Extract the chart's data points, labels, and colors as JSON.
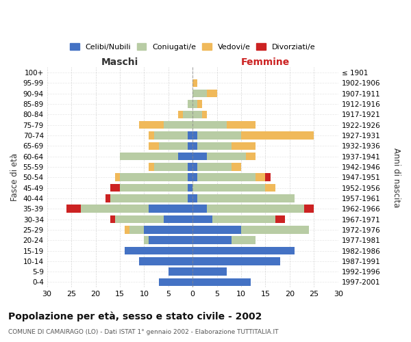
{
  "age_groups": [
    "100+",
    "95-99",
    "90-94",
    "85-89",
    "80-84",
    "75-79",
    "70-74",
    "65-69",
    "60-64",
    "55-59",
    "50-54",
    "45-49",
    "40-44",
    "35-39",
    "30-34",
    "25-29",
    "20-24",
    "15-19",
    "10-14",
    "5-9",
    "0-4"
  ],
  "birth_years": [
    "≤ 1901",
    "1902-1906",
    "1907-1911",
    "1912-1916",
    "1917-1921",
    "1922-1926",
    "1927-1931",
    "1932-1936",
    "1937-1941",
    "1942-1946",
    "1947-1951",
    "1952-1956",
    "1957-1961",
    "1962-1966",
    "1967-1971",
    "1972-1976",
    "1977-1981",
    "1982-1986",
    "1987-1991",
    "1992-1996",
    "1997-2001"
  ],
  "male": {
    "celibi": [
      0,
      0,
      0,
      0,
      0,
      0,
      1,
      1,
      3,
      1,
      1,
      1,
      1,
      9,
      6,
      10,
      9,
      14,
      11,
      5,
      7
    ],
    "coniugati": [
      0,
      0,
      0,
      1,
      2,
      6,
      7,
      6,
      12,
      7,
      14,
      14,
      16,
      14,
      10,
      3,
      1,
      0,
      0,
      0,
      0
    ],
    "vedovi": [
      0,
      0,
      0,
      0,
      1,
      5,
      1,
      2,
      0,
      1,
      1,
      0,
      0,
      0,
      0,
      1,
      0,
      0,
      0,
      0,
      0
    ],
    "divorziati": [
      0,
      0,
      0,
      0,
      0,
      0,
      0,
      0,
      0,
      0,
      0,
      2,
      1,
      3,
      1,
      0,
      0,
      0,
      0,
      0,
      0
    ]
  },
  "female": {
    "nubili": [
      0,
      0,
      0,
      0,
      0,
      0,
      1,
      1,
      3,
      1,
      1,
      0,
      1,
      3,
      4,
      10,
      8,
      21,
      18,
      7,
      12
    ],
    "coniugate": [
      0,
      0,
      3,
      1,
      2,
      7,
      9,
      7,
      8,
      7,
      12,
      15,
      20,
      20,
      13,
      14,
      5,
      0,
      0,
      0,
      0
    ],
    "vedove": [
      0,
      1,
      2,
      1,
      1,
      6,
      15,
      5,
      2,
      2,
      2,
      2,
      0,
      0,
      0,
      0,
      0,
      0,
      0,
      0,
      0
    ],
    "divorziate": [
      0,
      0,
      0,
      0,
      0,
      0,
      0,
      0,
      0,
      0,
      1,
      0,
      0,
      2,
      2,
      0,
      0,
      0,
      0,
      0,
      0
    ]
  },
  "colors": {
    "celibi": "#4472c4",
    "coniugati": "#b8cca4",
    "vedovi": "#f0b95a",
    "divorziati": "#cc2222"
  },
  "title": "Popolazione per età, sesso e stato civile - 2002",
  "subtitle": "COMUNE DI CAMAIRAGO (LO) - Dati ISTAT 1° gennaio 2002 - Elaborazione TUTTITALIA.IT",
  "xlabel_left": "Maschi",
  "xlabel_right": "Femmine",
  "ylabel_left": "Fasce di età",
  "ylabel_right": "Anni di nascita",
  "xlim": 30,
  "legend_labels": [
    "Celibi/Nubili",
    "Coniugati/e",
    "Vedovi/e",
    "Divorziati/e"
  ],
  "bg_color": "#ffffff",
  "grid_color": "#cccccc"
}
